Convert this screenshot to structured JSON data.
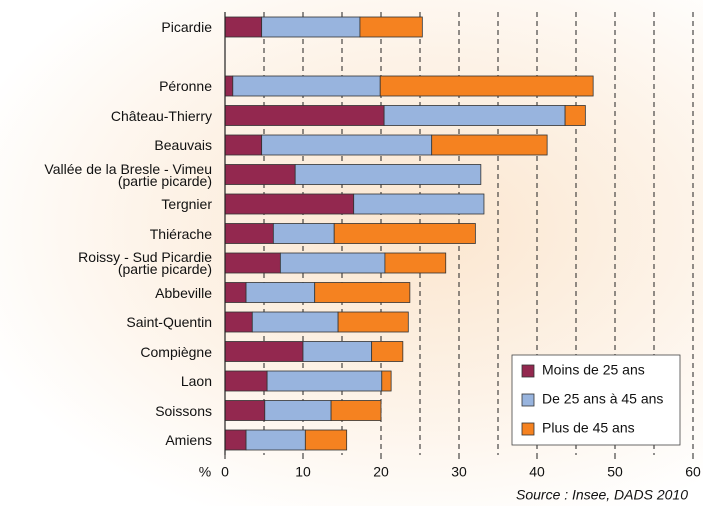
{
  "chart_data": {
    "type": "stacked_barh",
    "categories": [
      "Picardie",
      null,
      "Péronne",
      "Château-Thierry",
      "Beauvais",
      "Vallée de la Bresle - Vimeu\n(partie picarde)",
      "Tergnier",
      "Thiérache",
      "Roissy - Sud Picardie\n(partie picarde)",
      "Abbeville",
      "Saint-Quentin",
      "Compiègne",
      "Laon",
      "Soissons",
      "Amiens"
    ],
    "series": [
      {
        "name": "Moins de 25 ans",
        "color": "#93284f",
        "values": [
          4.7,
          null,
          1.0,
          20.4,
          4.7,
          9.0,
          16.5,
          6.2,
          7.1,
          2.7,
          3.5,
          10.0,
          5.4,
          5.1,
          2.7
        ]
      },
      {
        "name": "De 25 ans à 45 ans",
        "color": "#98b4de",
        "values": [
          12.6,
          null,
          18.9,
          23.2,
          21.8,
          23.8,
          16.7,
          7.8,
          13.4,
          8.8,
          11.0,
          8.8,
          14.7,
          8.5,
          7.6
        ]
      },
      {
        "name": "Plus de 45 ans",
        "color": "#f58220",
        "values": [
          8.0,
          null,
          27.3,
          2.6,
          14.8,
          0,
          0,
          18.1,
          7.8,
          12.2,
          9.0,
          4.0,
          1.2,
          6.4,
          5.3
        ]
      }
    ],
    "xlabel": "%",
    "xlim": [
      0,
      60
    ],
    "xticks": [
      0,
      10,
      20,
      30,
      40,
      50,
      60
    ],
    "xgrid": [
      5,
      10,
      15,
      20,
      25,
      30,
      35,
      40,
      45,
      50,
      55,
      60
    ],
    "grid": true,
    "legend": "lower right",
    "source": "Source : Insee, DADS 2010"
  }
}
